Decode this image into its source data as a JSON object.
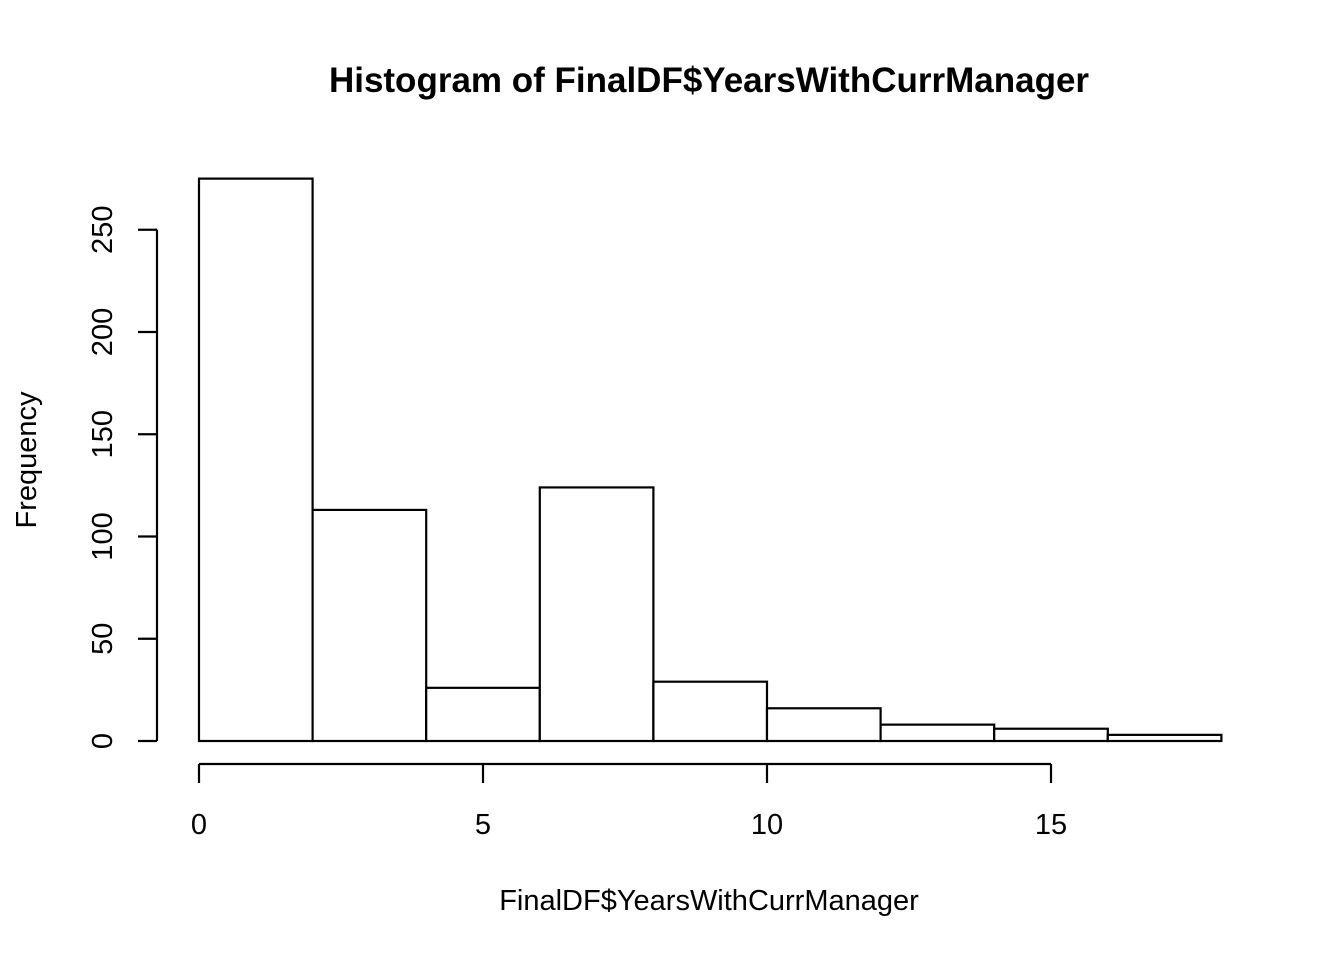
{
  "chart_data": {
    "type": "bar",
    "subtype": "histogram",
    "title": "Histogram of FinalDF$YearsWithCurrManager",
    "xlabel": "FinalDF$YearsWithCurrManager",
    "ylabel": "Frequency",
    "bin_edges": [
      0,
      2,
      4,
      6,
      8,
      10,
      12,
      14,
      16,
      18
    ],
    "values": [
      275,
      113,
      26,
      124,
      29,
      16,
      8,
      6,
      3
    ],
    "xlim": [
      0,
      18
    ],
    "ylim": [
      0,
      275
    ],
    "x_ticks": [
      0,
      5,
      10,
      15
    ],
    "y_ticks": [
      0,
      50,
      100,
      150,
      200,
      250
    ],
    "grid": false,
    "colors": {
      "bar_fill": "#ffffff",
      "bar_stroke": "#000000",
      "background": "#ffffff"
    }
  }
}
